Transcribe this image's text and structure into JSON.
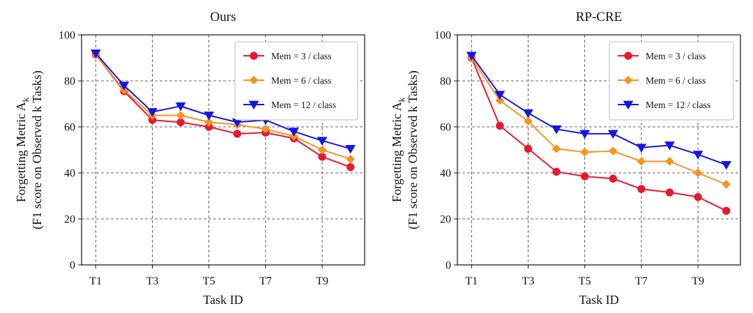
{
  "chart_data": [
    {
      "type": "line",
      "title": "Ours",
      "xlabel": "Task ID",
      "ylabel": "Forgetting Metric A",
      "ylabel_sub": "k",
      "ylabel2": "(F1 score on Observed k Tasks)",
      "x_categories": [
        "T1",
        "T2",
        "T3",
        "T4",
        "T5",
        "T6",
        "T7",
        "T8",
        "T9",
        "T10"
      ],
      "x_tick_labels": [
        "T1",
        "T3",
        "T5",
        "T7",
        "T9"
      ],
      "ylim": [
        0,
        100
      ],
      "y_ticks": [
        "0",
        "20",
        "40",
        "60",
        "80",
        "100"
      ],
      "grid": true,
      "legend_position": "top-right",
      "series": [
        {
          "name": "Mem = 3 / class",
          "color": "#e8192c",
          "marker": "circle",
          "values": [
            91.5,
            75.5,
            63,
            62,
            60,
            57,
            57.5,
            55,
            47,
            42.5
          ]
        },
        {
          "name": "Mem = 6 / class",
          "color": "#f7931e",
          "marker": "diamond",
          "values": [
            91.5,
            76,
            65,
            65,
            62,
            61,
            59,
            56,
            50,
            46
          ]
        },
        {
          "name": "Mem = 12 / class",
          "color": "#1414e6",
          "marker": "triangle-down",
          "values": [
            92,
            78,
            66.5,
            69,
            65,
            62,
            63,
            58,
            54,
            50.5
          ]
        }
      ]
    },
    {
      "type": "line",
      "title": "RP-CRE",
      "xlabel": "Task ID",
      "ylabel": "Forgetting Metric A",
      "ylabel_sub": "k",
      "ylabel2": "(F1 score on Observed k Tasks)",
      "x_categories": [
        "T1",
        "T2",
        "T3",
        "T4",
        "T5",
        "T6",
        "T7",
        "T8",
        "T9",
        "T10"
      ],
      "x_tick_labels": [
        "T1",
        "T3",
        "T5",
        "T7",
        "T9"
      ],
      "ylim": [
        0,
        100
      ],
      "y_ticks": [
        "0",
        "20",
        "40",
        "60",
        "80",
        "100"
      ],
      "grid": true,
      "legend_position": "top-right",
      "series": [
        {
          "name": "Mem = 3 / class",
          "color": "#e8192c",
          "marker": "circle",
          "values": [
            90,
            60.5,
            50.5,
            40.5,
            38.5,
            37.5,
            33,
            31.5,
            29.5,
            23.5
          ]
        },
        {
          "name": "Mem = 6 / class",
          "color": "#f7931e",
          "marker": "diamond",
          "values": [
            90,
            71.5,
            62.5,
            50.5,
            49,
            49.5,
            45,
            45,
            40,
            35
          ]
        },
        {
          "name": "Mem = 12 / class",
          "color": "#1414e6",
          "marker": "triangle-down",
          "values": [
            91,
            74,
            66,
            59,
            57,
            57,
            51,
            52,
            48,
            43.5
          ]
        }
      ]
    }
  ]
}
